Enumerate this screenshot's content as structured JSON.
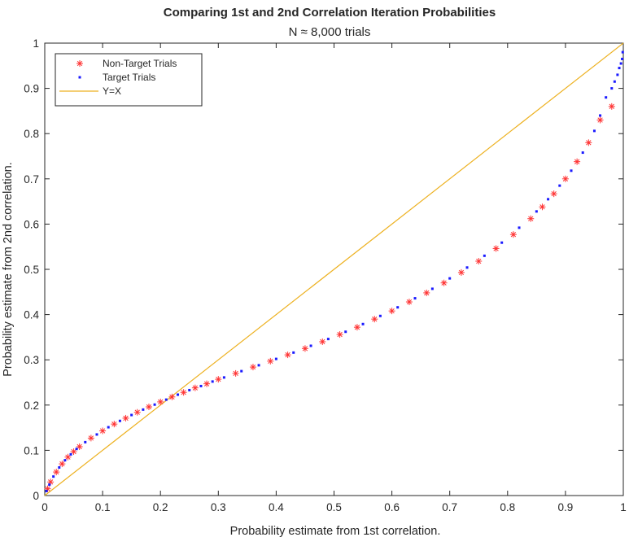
{
  "chart_data": {
    "type": "scatter",
    "title": "Comparing 1st and 2nd Correlation Iteration Probabilities",
    "subtitle": "N ≈ 8,000  trials",
    "xlabel": "Probability estimate from 1st correlation.",
    "ylabel": "Probability estimate from 2nd correlation.",
    "xlim": [
      0,
      1
    ],
    "ylim": [
      0,
      1
    ],
    "x_ticks": [
      0,
      0.1,
      0.2,
      0.3,
      0.4,
      0.5,
      0.6,
      0.7,
      0.8,
      0.9,
      1
    ],
    "y_ticks": [
      0,
      0.1,
      0.2,
      0.3,
      0.4,
      0.5,
      0.6,
      0.7,
      0.8,
      0.9,
      1
    ],
    "x_tick_labels": [
      "0",
      "0.1",
      "0.2",
      "0.3",
      "0.4",
      "0.5",
      "0.6",
      "0.7",
      "0.8",
      "0.9",
      "1"
    ],
    "y_tick_labels": [
      "0",
      "0.1",
      "0.2",
      "0.3",
      "0.4",
      "0.5",
      "0.6",
      "0.7",
      "0.8",
      "0.9",
      "1"
    ],
    "grid": false,
    "legend_position": "top-left",
    "series": [
      {
        "name": "Non-Target Trials",
        "marker": "asterisk",
        "color": "#ff3333",
        "x": [
          0.005,
          0.01,
          0.02,
          0.03,
          0.04,
          0.05,
          0.06,
          0.08,
          0.1,
          0.12,
          0.14,
          0.16,
          0.18,
          0.2,
          0.22,
          0.24,
          0.26,
          0.28,
          0.3,
          0.33,
          0.36,
          0.39,
          0.42,
          0.45,
          0.48,
          0.51,
          0.54,
          0.57,
          0.6,
          0.63,
          0.66,
          0.69,
          0.72,
          0.75,
          0.78,
          0.81,
          0.84,
          0.86,
          0.88,
          0.9,
          0.92,
          0.94,
          0.96,
          0.98
        ],
        "y": [
          0.015,
          0.03,
          0.052,
          0.07,
          0.085,
          0.097,
          0.108,
          0.127,
          0.143,
          0.158,
          0.171,
          0.184,
          0.196,
          0.207,
          0.218,
          0.228,
          0.238,
          0.247,
          0.257,
          0.27,
          0.284,
          0.297,
          0.311,
          0.325,
          0.34,
          0.356,
          0.372,
          0.39,
          0.408,
          0.428,
          0.448,
          0.47,
          0.493,
          0.518,
          0.546,
          0.577,
          0.612,
          0.638,
          0.667,
          0.7,
          0.738,
          0.78,
          0.83,
          0.86
        ]
      },
      {
        "name": "Target Trials",
        "marker": "point",
        "color": "#1a1aff",
        "x": [
          0.003,
          0.008,
          0.015,
          0.025,
          0.035,
          0.045,
          0.055,
          0.07,
          0.09,
          0.11,
          0.13,
          0.15,
          0.17,
          0.19,
          0.21,
          0.23,
          0.25,
          0.27,
          0.29,
          0.31,
          0.34,
          0.37,
          0.4,
          0.43,
          0.46,
          0.49,
          0.52,
          0.55,
          0.58,
          0.61,
          0.64,
          0.67,
          0.7,
          0.73,
          0.76,
          0.79,
          0.82,
          0.85,
          0.87,
          0.89,
          0.91,
          0.93,
          0.95,
          0.96,
          0.97,
          0.98,
          0.985,
          0.99,
          0.993,
          0.996,
          0.998,
          0.999
        ],
        "y": [
          0.01,
          0.024,
          0.042,
          0.062,
          0.078,
          0.091,
          0.103,
          0.118,
          0.135,
          0.151,
          0.165,
          0.178,
          0.19,
          0.201,
          0.212,
          0.223,
          0.233,
          0.242,
          0.252,
          0.261,
          0.275,
          0.288,
          0.302,
          0.316,
          0.331,
          0.346,
          0.362,
          0.379,
          0.397,
          0.416,
          0.436,
          0.457,
          0.48,
          0.504,
          0.53,
          0.559,
          0.592,
          0.628,
          0.655,
          0.685,
          0.718,
          0.758,
          0.806,
          0.84,
          0.88,
          0.9,
          0.915,
          0.93,
          0.945,
          0.955,
          0.965,
          0.98
        ]
      },
      {
        "name": "Y=X",
        "marker": "line",
        "color": "#edb120",
        "x": [
          0,
          1
        ],
        "y": [
          0,
          1
        ]
      }
    ]
  }
}
